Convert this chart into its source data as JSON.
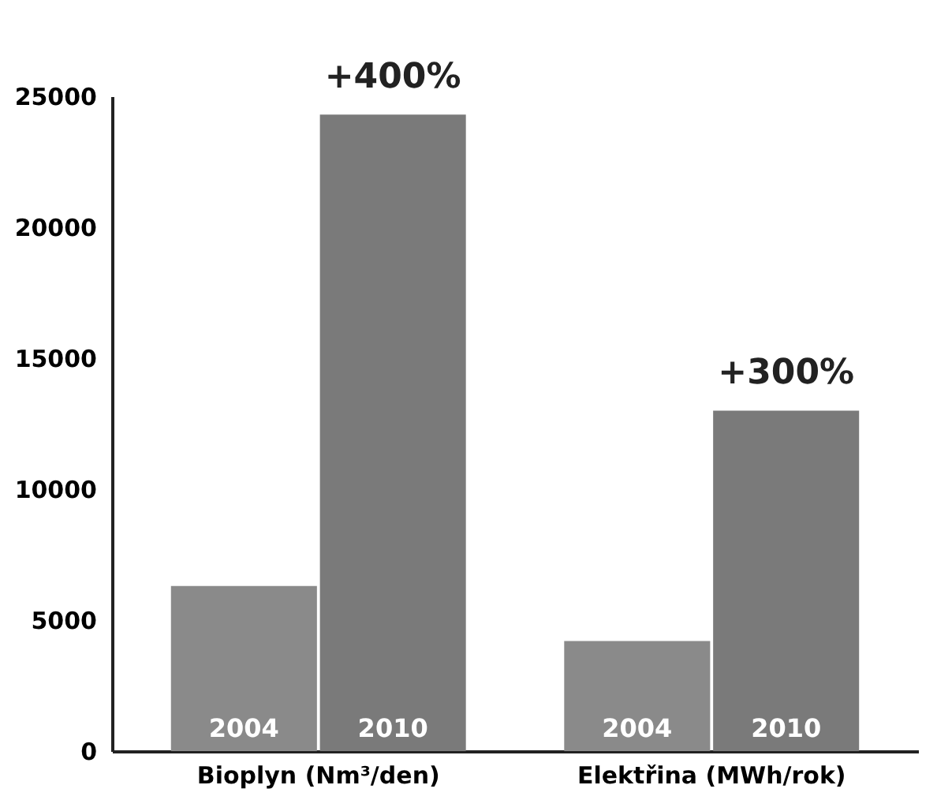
{
  "chart_data": {
    "type": "bar",
    "categories": [
      "Bioplyn (Nm³/den)",
      "Elektřina (MWh/rok)"
    ],
    "series": [
      {
        "name": "2004",
        "color": "#8a8a8a",
        "values": [
          6300,
          4200
        ]
      },
      {
        "name": "2010",
        "color": "#7a7a7a",
        "values": [
          24300,
          13000
        ]
      }
    ],
    "ylim": [
      0,
      25000
    ],
    "yticks": [
      0,
      5000,
      10000,
      15000,
      20000,
      25000
    ],
    "annotations": [
      {
        "text": "+400%",
        "x": "Bioplyn (Nm³/den)",
        "y": 24300
      },
      {
        "text": "+300%",
        "x": "Elektřina (MWh/rok)",
        "y": 13000
      }
    ],
    "grid": false,
    "legend": false
  }
}
